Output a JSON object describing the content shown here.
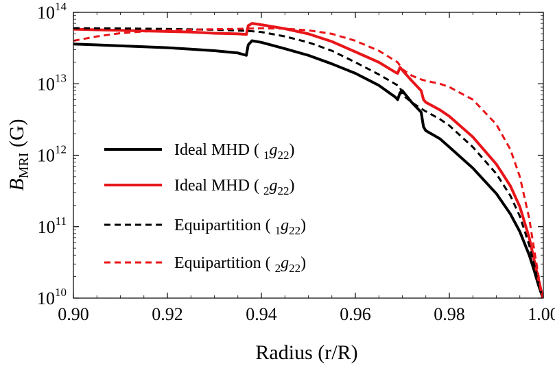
{
  "chart_data": {
    "type": "line",
    "xlabel": "Radius (r/R)",
    "ylabel": {
      "main": "B",
      "sub": "MRI",
      "unit": " (G)"
    },
    "xlim": [
      0.9,
      1.0
    ],
    "ylim": [
      10000000000.0,
      100000000000000.0
    ],
    "yscale": "log",
    "x_ticks": [
      0.9,
      0.92,
      0.94,
      0.96,
      0.98,
      1.0
    ],
    "x_tick_labels": [
      "0.90",
      "0.92",
      "0.94",
      "0.96",
      "0.98",
      "1.00"
    ],
    "y_ticks": [
      {
        "value": 10000000000.0,
        "base": "10",
        "exp": "10"
      },
      {
        "value": 100000000000.0,
        "base": "10",
        "exp": "11"
      },
      {
        "value": 1000000000000.0,
        "base": "10",
        "exp": "12"
      },
      {
        "value": 10000000000000.0,
        "base": "10",
        "exp": "13"
      },
      {
        "value": 100000000000000.0,
        "base": "10",
        "exp": "14"
      }
    ],
    "grid": false,
    "legend_position": "center-left",
    "series": [
      {
        "name": "Ideal MHD ( 1g22)",
        "label": {
          "prefix": "Ideal MHD ( ",
          "sub": "1",
          "g": "g",
          "gsub": "22",
          "suffix": ")"
        },
        "color": "#000000",
        "dash": "solid",
        "x": [
          0.9,
          0.905,
          0.91,
          0.915,
          0.92,
          0.925,
          0.93,
          0.935,
          0.9368,
          0.9372,
          0.938,
          0.94,
          0.945,
          0.95,
          0.955,
          0.96,
          0.965,
          0.9685,
          0.969,
          0.9695,
          0.97,
          0.972,
          0.974,
          0.9745,
          0.975,
          0.978,
          0.98,
          0.985,
          0.99,
          0.993,
          0.995,
          0.997,
          0.998,
          0.999,
          0.9995,
          0.9999
        ],
        "y": [
          36000000000000.0,
          35000000000000.0,
          34000000000000.0,
          33000000000000.0,
          32000000000000.0,
          30500000000000.0,
          29000000000000.0,
          27000000000000.0,
          25000000000000.0,
          35000000000000.0,
          40000000000000.0,
          38000000000000.0,
          31000000000000.0,
          25000000000000.0,
          19000000000000.0,
          14000000000000.0,
          9500000000000.0,
          6500000000000.0,
          6000000000000.0,
          7500000000000.0,
          8000000000000.0,
          5500000000000.0,
          4000000000000.0,
          2500000000000.0,
          2200000000000.0,
          1700000000000.0,
          1300000000000.0,
          660000000000.0,
          290000000000.0,
          150000000000.0,
          85000000000.0,
          40000000000.0,
          25000000000.0,
          15000000000.0,
          12000000000.0,
          10000000000.0
        ]
      },
      {
        "name": "Ideal MHD ( 2g22)",
        "label": {
          "prefix": "Ideal MHD ( ",
          "sub": "2",
          "g": "g",
          "gsub": "22",
          "suffix": ")"
        },
        "color": "#e8161a",
        "dash": "solid",
        "x": [
          0.9,
          0.905,
          0.91,
          0.915,
          0.92,
          0.925,
          0.93,
          0.935,
          0.9368,
          0.9372,
          0.938,
          0.94,
          0.945,
          0.95,
          0.955,
          0.96,
          0.965,
          0.9685,
          0.969,
          0.9695,
          0.97,
          0.972,
          0.974,
          0.9745,
          0.975,
          0.978,
          0.98,
          0.985,
          0.99,
          0.993,
          0.995,
          0.997,
          0.998,
          0.999,
          0.9995,
          0.9999
        ],
        "y": [
          58000000000000.0,
          57000000000000.0,
          56000000000000.0,
          55000000000000.0,
          54000000000000.0,
          53000000000000.0,
          51000000000000.0,
          50000000000000.0,
          49000000000000.0,
          65000000000000.0,
          70000000000000.0,
          67000000000000.0,
          59000000000000.0,
          50000000000000.0,
          39000000000000.0,
          28000000000000.0,
          20000000000000.0,
          14500000000000.0,
          14000000000000.0,
          17000000000000.0,
          15500000000000.0,
          11000000000000.0,
          8000000000000.0,
          6000000000000.0,
          5500000000000.0,
          4300000000000.0,
          3500000000000.0,
          1800000000000.0,
          750000000000.0,
          370000000000.0,
          190000000000.0,
          70000000000.0,
          35000000000.0,
          18000000000.0,
          13000000000.0,
          10000000000.0
        ]
      },
      {
        "name": "Equipartition ( 1g22)",
        "label": {
          "prefix": "Equipartition ( ",
          "sub": "1",
          "g": "g",
          "gsub": "22",
          "suffix": ")"
        },
        "color": "#000000",
        "dash": "dashed",
        "x": [
          0.9,
          0.91,
          0.92,
          0.93,
          0.937,
          0.94,
          0.945,
          0.95,
          0.955,
          0.96,
          0.965,
          0.969,
          0.9695,
          0.97,
          0.972,
          0.974,
          0.975,
          0.978,
          0.98,
          0.985,
          0.99,
          0.993,
          0.995,
          0.997,
          0.998,
          0.999,
          0.9995,
          0.9999
        ],
        "y": [
          60000000000000.0,
          59500000000000.0,
          58500000000000.0,
          57000000000000.0,
          55000000000000.0,
          53000000000000.0,
          46000000000000.0,
          38000000000000.0,
          29000000000000.0,
          20000000000000.0,
          13500000000000.0,
          9500000000000.0,
          9000000000000.0,
          7000000000000.0,
          5500000000000.0,
          4500000000000.0,
          4100000000000.0,
          3200000000000.0,
          2600000000000.0,
          1300000000000.0,
          550000000000.0,
          270000000000.0,
          140000000000.0,
          55000000000.0,
          30000000000.0,
          16000000000.0,
          12000000000.0,
          10000000000.0
        ]
      },
      {
        "name": "Equipartition ( 2g22)",
        "label": {
          "prefix": "Equipartition ( ",
          "sub": "2",
          "g": "g",
          "gsub": "22",
          "suffix": ")"
        },
        "color": "#e8161a",
        "dash": "dashed",
        "x": [
          0.9,
          0.905,
          0.91,
          0.915,
          0.92,
          0.93,
          0.937,
          0.94,
          0.945,
          0.95,
          0.955,
          0.96,
          0.965,
          0.969,
          0.97,
          0.972,
          0.974,
          0.975,
          0.978,
          0.98,
          0.985,
          0.99,
          0.993,
          0.995,
          0.997,
          0.998,
          0.999,
          0.9995,
          0.9999
        ],
        "y": [
          40000000000000.0,
          46000000000000.0,
          51000000000000.0,
          54000000000000.0,
          56000000000000.0,
          58000000000000.0,
          59000000000000.0,
          60000000000000.0,
          59000000000000.0,
          56000000000000.0,
          50000000000000.0,
          40000000000000.0,
          29000000000000.0,
          20000000000000.0,
          16000000000000.0,
          13000000000000.0,
          11500000000000.0,
          11000000000000.0,
          10000000000000.0,
          9000000000000.0,
          6000000000000.0,
          2700000000000.0,
          1200000000000.0,
          500000000000.0,
          130000000000.0,
          50000000000.0,
          20000000000.0,
          13000000000.0,
          10000000000.0
        ]
      }
    ]
  }
}
